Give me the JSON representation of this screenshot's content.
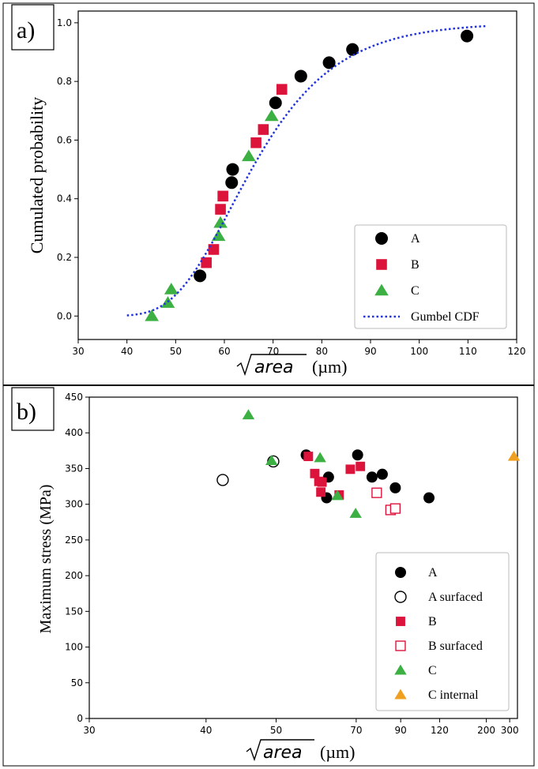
{
  "chart_data": [
    {
      "type": "scatter",
      "panel_label": "a)",
      "xlabel_unit": "(µm)",
      "xlabel_var": "area",
      "ylabel": "Cumulated probability",
      "xlim": [
        30,
        120
      ],
      "ylim": [
        -0.08,
        1.04
      ],
      "xticks": [
        30,
        40,
        50,
        60,
        70,
        80,
        90,
        100,
        110,
        120
      ],
      "yticks": [
        0.0,
        0.2,
        0.4,
        0.6,
        0.8,
        1.0
      ],
      "ytick_labels": [
        "0.0",
        "0.2",
        "0.4",
        "0.6",
        "0.8",
        "1.0"
      ],
      "grid": false,
      "legend_position": "bottom-right",
      "series": [
        {
          "name": "A",
          "marker": "circle",
          "color": "#000000",
          "filled": true,
          "points": [
            [
              55,
              0.137
            ],
            [
              61.5,
              0.455
            ],
            [
              61.7,
              0.5
            ],
            [
              70.5,
              0.727
            ],
            [
              75.7,
              0.818
            ],
            [
              81.5,
              0.864
            ],
            [
              86.3,
              0.909
            ],
            [
              109.8,
              0.955
            ]
          ]
        },
        {
          "name": "B",
          "marker": "square",
          "color": "#dc143c",
          "filled": true,
          "points": [
            [
              56.3,
              0.182
            ],
            [
              57.8,
              0.227
            ],
            [
              59.2,
              0.364
            ],
            [
              59.7,
              0.409
            ],
            [
              66.5,
              0.591
            ],
            [
              68,
              0.636
            ],
            [
              71.8,
              0.773
            ]
          ]
        },
        {
          "name": "C",
          "marker": "triangle",
          "color": "#3cb043",
          "filled": true,
          "points": [
            [
              45.1,
              0.0
            ],
            [
              48.4,
              0.045
            ],
            [
              49.1,
              0.091
            ],
            [
              58.8,
              0.273
            ],
            [
              59.2,
              0.318
            ],
            [
              65,
              0.545
            ],
            [
              69.7,
              0.682
            ]
          ]
        },
        {
          "name": "Gumbel CDF",
          "marker": "line",
          "color": "#2233dd",
          "style": "dotted",
          "mu": 61.3,
          "beta": 11.7,
          "x_range": [
            40,
            114
          ]
        }
      ]
    },
    {
      "type": "scatter",
      "panel_label": "b)",
      "xlabel_unit": "(µm)",
      "xlabel_var": "area",
      "ylabel": "Maximum stress (MPa)",
      "x_scale": "reciprocal",
      "xlim": [
        30,
        360
      ],
      "ylim": [
        0,
        450
      ],
      "xticks": [
        30,
        40,
        50,
        70,
        90,
        120,
        200,
        300
      ],
      "yticks": [
        0,
        50,
        100,
        150,
        200,
        250,
        300,
        350,
        400,
        450
      ],
      "grid": false,
      "legend_position": "bottom-right",
      "series": [
        {
          "name": "A",
          "marker": "circle",
          "color": "#000000",
          "filled": true,
          "points": [
            [
              56,
              369
            ],
            [
              61,
              309
            ],
            [
              61.5,
              338
            ],
            [
              70.5,
              369
            ],
            [
              76,
              338
            ],
            [
              80.5,
              342
            ],
            [
              87,
              323
            ],
            [
              110,
              309
            ]
          ]
        },
        {
          "name": "A surfaced",
          "marker": "circle",
          "color": "#000000",
          "filled": false,
          "points": [
            [
              42,
              334
            ],
            [
              49.5,
              360
            ]
          ]
        },
        {
          "name": "B",
          "marker": "square",
          "color": "#dc143c",
          "filled": true,
          "points": [
            [
              56.5,
              367
            ],
            [
              58,
              343
            ],
            [
              59,
              332
            ],
            [
              59.5,
              317
            ],
            [
              59.8,
              331
            ],
            [
              64.5,
              313
            ],
            [
              68,
              349
            ],
            [
              71.5,
              353
            ]
          ]
        },
        {
          "name": "B surfaced",
          "marker": "square",
          "color": "#dc143c",
          "filled": false,
          "points": [
            [
              78,
              316
            ],
            [
              84.5,
              292
            ],
            [
              87,
              294
            ]
          ]
        },
        {
          "name": "C",
          "marker": "triangle",
          "color": "#3cb043",
          "filled": true,
          "points": [
            [
              45.5,
              425
            ],
            [
              49.2,
              361
            ],
            [
              59.3,
              365
            ],
            [
              64,
              312
            ],
            [
              69.8,
              287
            ]
          ]
        },
        {
          "name": "C internal",
          "marker": "triangle",
          "color": "#f0a020",
          "filled": true,
          "points": [
            [
              330,
              367
            ]
          ]
        }
      ]
    }
  ]
}
